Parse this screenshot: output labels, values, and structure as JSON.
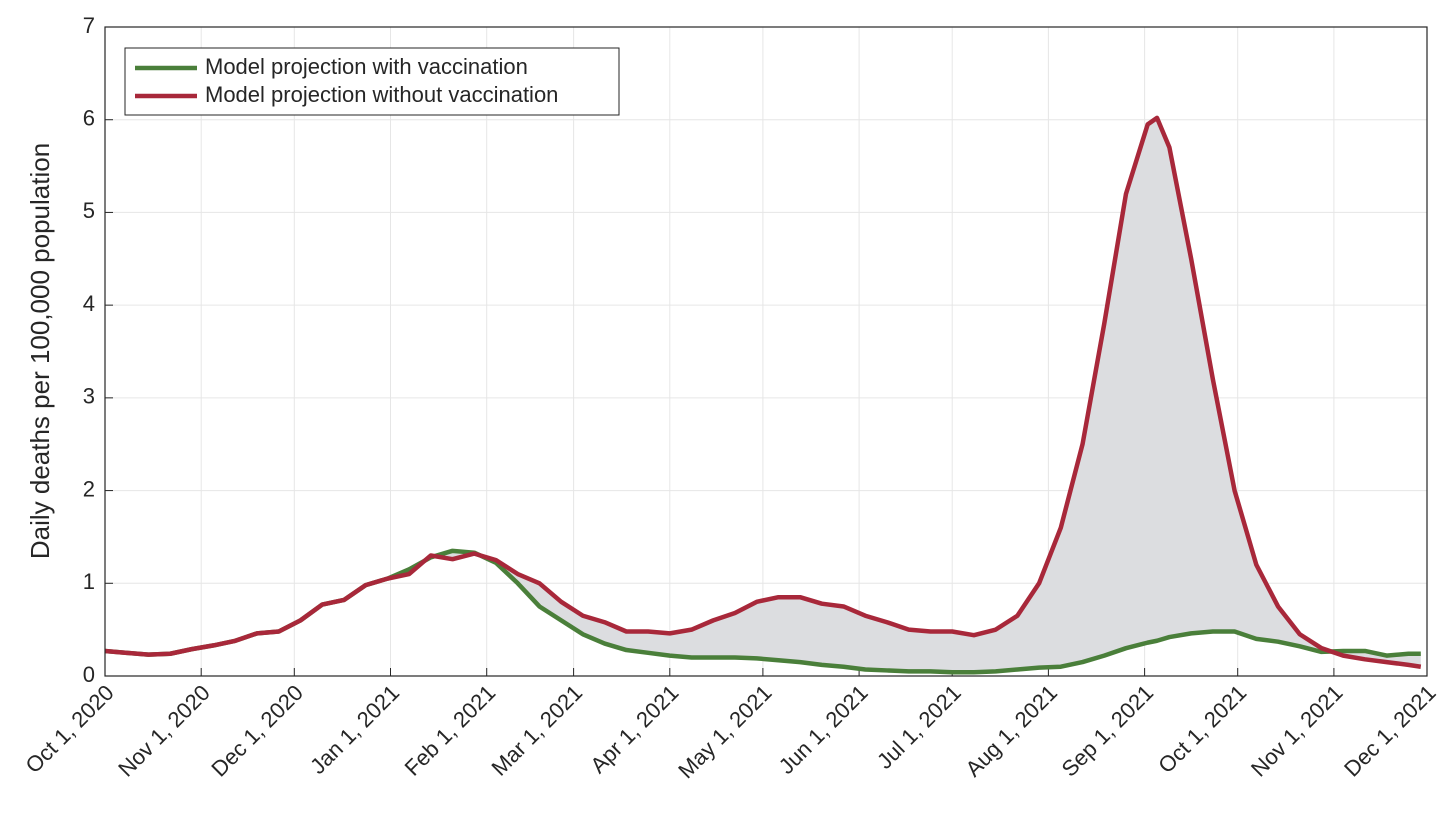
{
  "chart_data": {
    "type": "line",
    "ylabel": "Daily deaths per 100,000 population",
    "x": [
      "2020-10-01",
      "2020-10-08",
      "2020-10-15",
      "2020-10-22",
      "2020-10-29",
      "2020-11-05",
      "2020-11-12",
      "2020-11-19",
      "2020-11-26",
      "2020-12-03",
      "2020-12-10",
      "2020-12-17",
      "2020-12-24",
      "2020-12-31",
      "2021-01-07",
      "2021-01-14",
      "2021-01-21",
      "2021-01-28",
      "2021-02-04",
      "2021-02-11",
      "2021-02-18",
      "2021-02-25",
      "2021-03-04",
      "2021-03-11",
      "2021-03-18",
      "2021-03-25",
      "2021-04-01",
      "2021-04-08",
      "2021-04-15",
      "2021-04-22",
      "2021-04-29",
      "2021-05-06",
      "2021-05-13",
      "2021-05-20",
      "2021-05-27",
      "2021-06-03",
      "2021-06-10",
      "2021-06-17",
      "2021-06-24",
      "2021-07-01",
      "2021-07-08",
      "2021-07-15",
      "2021-07-22",
      "2021-07-29",
      "2021-08-05",
      "2021-08-12",
      "2021-08-19",
      "2021-08-26",
      "2021-09-02",
      "2021-09-05",
      "2021-09-09",
      "2021-09-16",
      "2021-09-23",
      "2021-09-30",
      "2021-10-07",
      "2021-10-14",
      "2021-10-21",
      "2021-10-28",
      "2021-11-04",
      "2021-11-11",
      "2021-11-18",
      "2021-11-25",
      "2021-11-29"
    ],
    "series": [
      {
        "name": "Model projection with vaccination",
        "color": "#4a7f3a",
        "values": [
          0.27,
          0.25,
          0.23,
          0.24,
          0.29,
          0.33,
          0.38,
          0.46,
          0.48,
          0.6,
          0.77,
          0.82,
          0.98,
          1.05,
          1.15,
          1.28,
          1.35,
          1.33,
          1.22,
          1.0,
          0.75,
          0.6,
          0.45,
          0.35,
          0.28,
          0.25,
          0.22,
          0.2,
          0.2,
          0.2,
          0.19,
          0.17,
          0.15,
          0.12,
          0.1,
          0.07,
          0.06,
          0.05,
          0.05,
          0.04,
          0.04,
          0.05,
          0.07,
          0.09,
          0.1,
          0.15,
          0.22,
          0.3,
          0.36,
          0.38,
          0.42,
          0.46,
          0.48,
          0.48,
          0.4,
          0.37,
          0.32,
          0.26,
          0.27,
          0.27,
          0.22,
          0.24,
          0.24
        ]
      },
      {
        "name": "Model projection without vaccination",
        "color": "#a8283a",
        "values": [
          0.27,
          0.25,
          0.23,
          0.24,
          0.29,
          0.33,
          0.38,
          0.46,
          0.48,
          0.6,
          0.77,
          0.82,
          0.98,
          1.05,
          1.1,
          1.3,
          1.26,
          1.32,
          1.25,
          1.1,
          1.0,
          0.8,
          0.65,
          0.58,
          0.48,
          0.48,
          0.46,
          0.5,
          0.6,
          0.68,
          0.8,
          0.85,
          0.85,
          0.78,
          0.75,
          0.65,
          0.58,
          0.5,
          0.48,
          0.48,
          0.44,
          0.5,
          0.65,
          1.0,
          1.6,
          2.5,
          3.8,
          5.2,
          5.95,
          6.02,
          5.7,
          4.5,
          3.2,
          2.0,
          1.2,
          0.75,
          0.45,
          0.3,
          0.22,
          0.18,
          0.15,
          0.12,
          0.1
        ]
      }
    ],
    "xlim": [
      "2020-10-01",
      "2021-12-01"
    ],
    "xticks": [
      {
        "value": "2020-10-01",
        "label": "Oct 1, 2020"
      },
      {
        "value": "2020-11-01",
        "label": "Nov 1, 2020"
      },
      {
        "value": "2020-12-01",
        "label": "Dec 1, 2020"
      },
      {
        "value": "2021-01-01",
        "label": "Jan 1, 2021"
      },
      {
        "value": "2021-02-01",
        "label": "Feb 1, 2021"
      },
      {
        "value": "2021-03-01",
        "label": "Mar 1, 2021"
      },
      {
        "value": "2021-04-01",
        "label": "Apr 1, 2021"
      },
      {
        "value": "2021-05-01",
        "label": "May 1, 2021"
      },
      {
        "value": "2021-06-01",
        "label": "Jun 1, 2021"
      },
      {
        "value": "2021-07-01",
        "label": "Jul 1, 2021"
      },
      {
        "value": "2021-08-01",
        "label": "Aug 1, 2021"
      },
      {
        "value": "2021-09-01",
        "label": "Sep 1, 2021"
      },
      {
        "value": "2021-10-01",
        "label": "Oct 1, 2021"
      },
      {
        "value": "2021-11-01",
        "label": "Nov 1, 2021"
      },
      {
        "value": "2021-12-01",
        "label": "Dec 1, 2021"
      }
    ],
    "ylim": [
      0,
      7
    ],
    "yticks": [
      0,
      1,
      2,
      3,
      4,
      5,
      6,
      7
    ],
    "grid": true,
    "legend": "upper left"
  }
}
